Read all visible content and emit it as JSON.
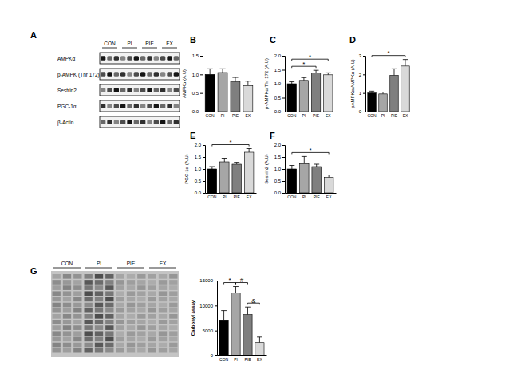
{
  "chart_data": [
    {
      "type": "blot",
      "title": "A",
      "lanes": [
        "CON",
        "PI",
        "PIE",
        "EX"
      ],
      "rows": [
        "AMPKα",
        "p-AMPK (Thr 172)",
        "Sestrin2",
        "PGC-1α",
        "β-Actin"
      ]
    },
    {
      "type": "bar",
      "title": "B",
      "y_label": "AMPKα (A.U)",
      "categories": [
        "CON",
        "PI",
        "PIE",
        "EX"
      ],
      "values": [
        1.0,
        1.05,
        0.8,
        0.7
      ],
      "errors": [
        0.15,
        0.1,
        0.12,
        0.12
      ],
      "colors": [
        "#000000",
        "#a6a6a6",
        "#7f7f7f",
        "#d9d9d9"
      ],
      "ylim": [
        0,
        1.5
      ],
      "yticks": [
        {
          "value": 0,
          "label": "0.0"
        },
        0.5,
        {
          "value": 1,
          "label": "1.0"
        },
        1.5
      ],
      "grid": false
    },
    {
      "type": "bar",
      "title": "C",
      "y_label": "p-AMPKα Thr 172 (A.U)",
      "categories": [
        "CON",
        "PI",
        "PIE",
        "EX"
      ],
      "values": [
        1.0,
        1.12,
        1.38,
        1.32
      ],
      "errors": [
        0.07,
        0.1,
        0.1,
        0.07
      ],
      "colors": [
        "#000000",
        "#a6a6a6",
        "#7f7f7f",
        "#d9d9d9"
      ],
      "ylim": [
        0,
        2
      ],
      "yticks": [
        {
          "value": 0,
          "label": "0.0"
        },
        0.5,
        {
          "value": 1,
          "label": "1.0"
        },
        1.5,
        {
          "value": 2,
          "label": "2.0"
        }
      ],
      "grid": false,
      "annotations": [
        {
          "from": "CON",
          "to": "PIE",
          "text": "*"
        },
        {
          "from": "CON",
          "to": "EX",
          "text": "*"
        }
      ]
    },
    {
      "type": "bar",
      "title": "D",
      "y_label": "pAMPKα/AMPKα (A.U)",
      "categories": [
        "CON",
        "PI",
        "PIE",
        "EX"
      ],
      "values": [
        1.0,
        0.95,
        1.95,
        2.45
      ],
      "errors": [
        0.1,
        0.1,
        0.35,
        0.35
      ],
      "colors": [
        "#000000",
        "#a6a6a6",
        "#7f7f7f",
        "#d9d9d9"
      ],
      "ylim": [
        0,
        3
      ],
      "yticks": [
        0,
        1,
        2,
        3
      ],
      "grid": false,
      "annotations": [
        {
          "from": "CON",
          "to": "EX",
          "text": "*"
        }
      ]
    },
    {
      "type": "bar",
      "title": "E",
      "y_label": "PGC-1α (A.U)",
      "categories": [
        "CON",
        "PI",
        "PIE",
        "EX"
      ],
      "values": [
        1.0,
        1.3,
        1.2,
        1.7
      ],
      "errors": [
        0.1,
        0.15,
        0.08,
        0.15
      ],
      "colors": [
        "#000000",
        "#a6a6a6",
        "#7f7f7f",
        "#d9d9d9"
      ],
      "ylim": [
        0,
        2
      ],
      "yticks": [
        {
          "value": 0,
          "label": "0.0"
        },
        0.5,
        {
          "value": 1,
          "label": "1.0"
        },
        1.5,
        {
          "value": 2,
          "label": "2.0"
        }
      ],
      "grid": false,
      "annotations": [
        {
          "from": "CON",
          "to": "EX",
          "text": "*"
        }
      ]
    },
    {
      "type": "bar",
      "title": "F",
      "y_label": "Sestrin2 (A.U)",
      "categories": [
        "CON",
        "PI",
        "PIE",
        "EX"
      ],
      "values": [
        1.0,
        1.22,
        1.1,
        0.65
      ],
      "errors": [
        0.15,
        0.3,
        0.1,
        0.1
      ],
      "colors": [
        "#000000",
        "#a6a6a6",
        "#7f7f7f",
        "#d9d9d9"
      ],
      "ylim": [
        0,
        2
      ],
      "yticks": [
        {
          "value": 0,
          "label": "0.0"
        },
        0.5,
        {
          "value": 1,
          "label": "1.0"
        },
        1.5,
        {
          "value": 2,
          "label": "2.0"
        }
      ],
      "grid": false,
      "annotations": [
        {
          "from": "CON",
          "to": "EX",
          "text": "*"
        }
      ]
    },
    {
      "type": "blot",
      "title": "G",
      "lanes": [
        "CON",
        "PI",
        "PIE",
        "EX"
      ]
    },
    {
      "type": "bar",
      "y_label": "Carbonyl assay",
      "categories": [
        "CON",
        "PI",
        "PIE",
        "EX"
      ],
      "values": [
        7000,
        12500,
        8200,
        2600
      ],
      "errors": [
        2000,
        1300,
        1500,
        1100
      ],
      "colors": [
        "#000000",
        "#a6a6a6",
        "#7f7f7f",
        "#d9d9d9"
      ],
      "ylim": [
        0,
        15000
      ],
      "yticks": [
        0,
        5000,
        10000,
        15000
      ],
      "grid": false,
      "annotations": [
        {
          "from": "CON",
          "to": "PI",
          "text": "*"
        },
        {
          "from": "PI",
          "to": "PIE",
          "text": "#"
        },
        {
          "from": "PIE",
          "to": "EX",
          "text": "&"
        }
      ]
    }
  ]
}
